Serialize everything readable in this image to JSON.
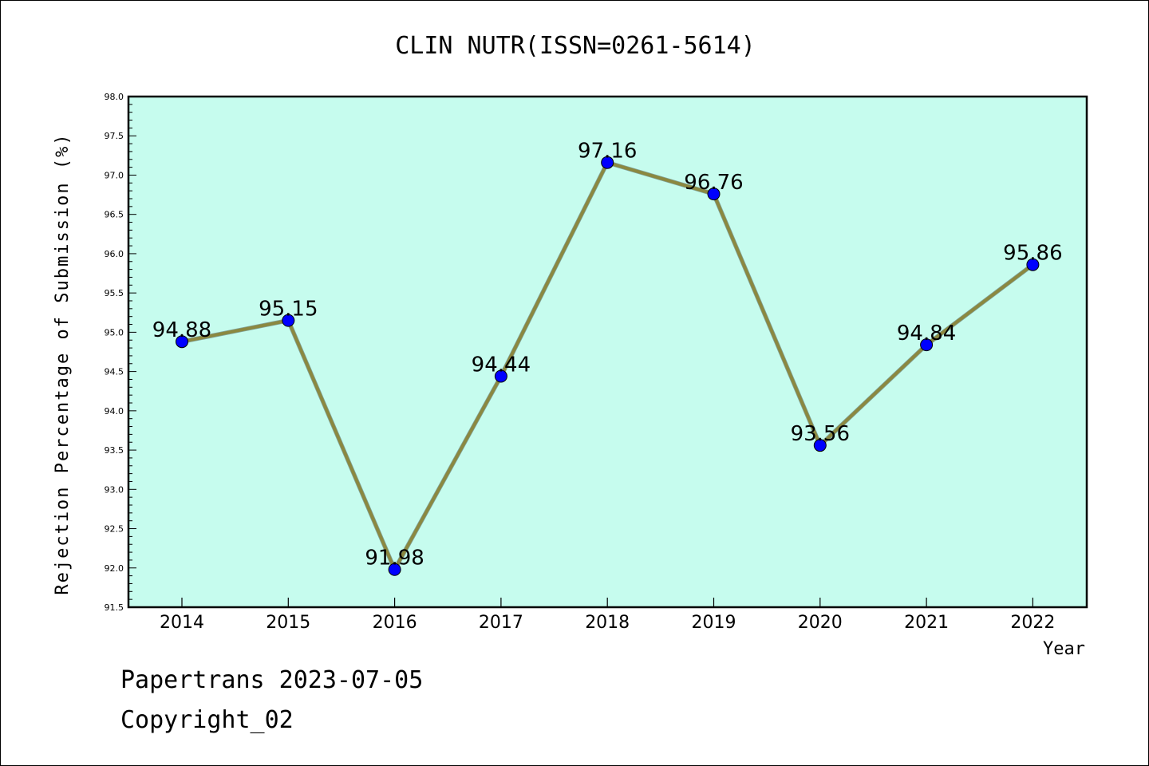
{
  "chart_data": {
    "type": "line",
    "title": "CLIN NUTR(ISSN=0261-5614)",
    "xlabel": "Year",
    "ylabel": "Rejection Percentage of Submission (%)",
    "categories": [
      "2014",
      "2015",
      "2016",
      "2017",
      "2018",
      "2019",
      "2020",
      "2021",
      "2022"
    ],
    "series": [
      {
        "values": [
          94.88,
          95.15,
          91.98,
          94.44,
          97.16,
          96.76,
          93.56,
          94.84,
          95.86
        ],
        "labels": [
          "94.88",
          "95.15",
          "91.98",
          "94.44",
          "97.16",
          "96.76",
          "93.56",
          "94.84",
          "95.86"
        ]
      }
    ],
    "ylim": [
      91.5,
      98.0
    ],
    "yticks": [
      "91.5",
      "92.0",
      "92.5",
      "93.0",
      "93.5",
      "94.0",
      "94.5",
      "95.0",
      "95.5",
      "96.0",
      "96.5",
      "97.0",
      "97.5",
      "98.0"
    ],
    "grid": false,
    "legend": "none",
    "colors": {
      "plot_background": "#c6fcee",
      "line": "#8b8840",
      "marker": "#0000ff"
    }
  },
  "footer": {
    "line1": "Papertrans 2023-07-05",
    "line2": "Copyright_02"
  }
}
